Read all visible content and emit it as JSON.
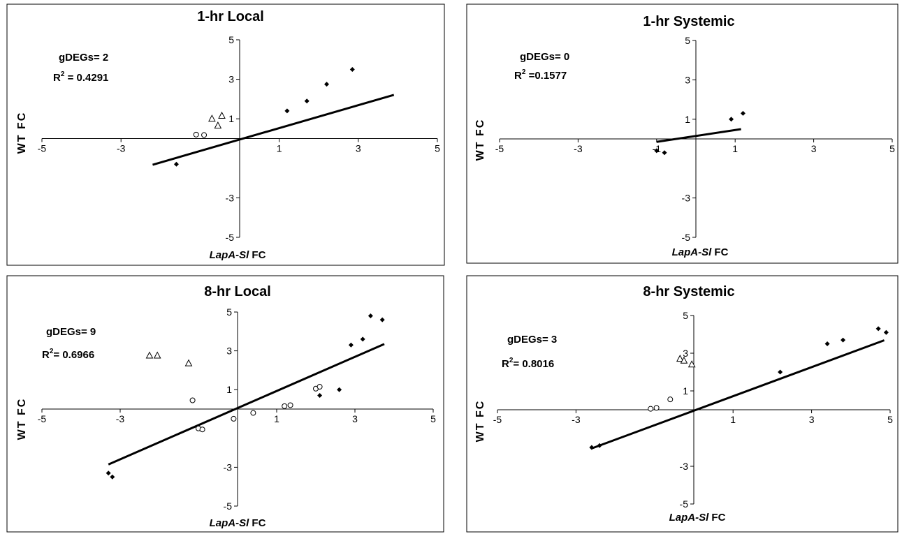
{
  "chart_data": [
    {
      "type": "scatter",
      "title": "1-hr Local",
      "xlabel": {
        "italic": "LapA-Sl",
        "rest": " FC"
      },
      "ylabel": "WT FC",
      "xlim": [
        -5,
        5
      ],
      "ylim": [
        -5,
        5
      ],
      "xticks": [
        -5,
        -3,
        1,
        3,
        5
      ],
      "yticks": [
        5,
        3,
        1,
        -3,
        -5
      ],
      "annotation": {
        "degs": "gDEGs= 2",
        "r2_prefix": "R",
        "r2_value": " = 0.4291"
      },
      "trendline": {
        "x0": -2.2,
        "x1": 3.9,
        "slope": 0.58,
        "intercept": -0.05
      },
      "cloud": {
        "cx": 0.0,
        "cy": -0.1,
        "sx": 0.45,
        "sy": 0.35,
        "corr": 0.65,
        "n": 1100
      },
      "points_filled_extra": [
        [
          2.2,
          2.75
        ],
        [
          2.85,
          3.5
        ],
        [
          1.2,
          1.4
        ],
        [
          1.7,
          1.9
        ],
        [
          -1.6,
          -1.3
        ]
      ],
      "points_open_circle": [
        [
          -1.1,
          0.2
        ],
        [
          -0.9,
          0.18
        ]
      ],
      "points_open_triangle": [
        [
          -0.7,
          1.0
        ],
        [
          -0.45,
          1.15
        ],
        [
          -0.55,
          0.65
        ]
      ]
    },
    {
      "type": "scatter",
      "title": "1-hr Systemic",
      "xlabel": {
        "italic": "LapA-Sl",
        "rest": " FC"
      },
      "ylabel": "WT FC",
      "xlim": [
        -5,
        5
      ],
      "ylim": [
        -5,
        5
      ],
      "xticks": [
        -5,
        -3,
        -1,
        1,
        3,
        5
      ],
      "yticks": [
        5,
        3,
        1,
        -3,
        -5
      ],
      "annotation": {
        "degs": "gDEGs= 0",
        "r2_prefix": "R",
        "r2_value": " =0.1577"
      },
      "trendline": {
        "x0": -1.0,
        "x1": 1.15,
        "slope": 0.3,
        "intercept": 0.15
      },
      "cloud": {
        "cx": 0.0,
        "cy": 0.15,
        "sx": 0.3,
        "sy": 0.2,
        "corr": 0.3,
        "n": 900
      },
      "points_filled_extra": [
        [
          1.2,
          1.3
        ],
        [
          0.9,
          1.0
        ],
        [
          -1.0,
          -0.6
        ],
        [
          -0.8,
          -0.7
        ]
      ],
      "points_open_circle": [],
      "points_open_triangle": []
    },
    {
      "type": "scatter",
      "title": "8-hr Local",
      "xlabel": {
        "italic": "LapA-Sl",
        "rest": " FC"
      },
      "ylabel": "WT FC",
      "xlim": [
        -5,
        5
      ],
      "ylim": [
        -5,
        5
      ],
      "xticks": [
        -5,
        -3,
        1,
        3,
        5
      ],
      "yticks": [
        5,
        3,
        1,
        -3,
        -5
      ],
      "annotation": {
        "degs": "gDEGs= 9",
        "r2_prefix": "R",
        "r2_value": "= 0.6966"
      },
      "trendline": {
        "x0": -3.3,
        "x1": 3.75,
        "slope": 0.88,
        "intercept": 0.05
      },
      "cloud": {
        "cx": -0.1,
        "cy": 0.0,
        "sx": 0.85,
        "sy": 0.75,
        "corr": 0.88,
        "n": 1500
      },
      "points_filled_extra": [
        [
          3.4,
          4.8
        ],
        [
          3.7,
          4.6
        ],
        [
          3.2,
          3.6
        ],
        [
          2.9,
          3.3
        ],
        [
          -3.3,
          -3.3
        ],
        [
          -3.2,
          -3.5
        ],
        [
          2.6,
          1.0
        ],
        [
          2.1,
          0.7
        ]
      ],
      "points_open_circle": [
        [
          -1.0,
          -1.0
        ],
        [
          -0.9,
          -1.05
        ],
        [
          -1.15,
          0.45
        ],
        [
          -0.1,
          -0.5
        ],
        [
          1.2,
          0.15
        ],
        [
          1.35,
          0.2
        ],
        [
          2.0,
          1.05
        ],
        [
          2.1,
          1.15
        ],
        [
          0.4,
          -0.2
        ]
      ],
      "points_open_triangle": [
        [
          -2.25,
          2.75
        ],
        [
          -2.05,
          2.75
        ],
        [
          -1.25,
          2.35
        ]
      ]
    },
    {
      "type": "scatter",
      "title": "8-hr Systemic",
      "xlabel": {
        "italic": "LapA-Sl",
        "rest": " FC"
      },
      "ylabel": "WT FC",
      "xlim": [
        -5,
        5
      ],
      "ylim": [
        -5,
        5
      ],
      "xticks": [
        -5,
        -3,
        1,
        3,
        5
      ],
      "yticks": [
        5,
        3,
        1,
        -3,
        -5
      ],
      "annotation": {
        "degs": "gDEGs= 3",
        "r2_prefix": "R",
        "r2_value": "= 0.8016"
      },
      "trendline": {
        "x0": -2.6,
        "x1": 4.85,
        "slope": 0.77,
        "intercept": -0.05
      },
      "cloud": {
        "cx": 0.0,
        "cy": 0.0,
        "sx": 0.85,
        "sy": 0.68,
        "corr": 0.94,
        "n": 1500
      },
      "points_filled_extra": [
        [
          4.7,
          4.3
        ],
        [
          4.9,
          4.1
        ],
        [
          3.8,
          3.7
        ],
        [
          3.4,
          3.5
        ],
        [
          -2.6,
          -2.0
        ],
        [
          -2.4,
          -1.9
        ],
        [
          2.2,
          2.0
        ]
      ],
      "points_open_circle": [
        [
          -1.1,
          0.05
        ],
        [
          -0.95,
          0.1
        ],
        [
          -0.6,
          0.55
        ]
      ],
      "points_open_triangle": [
        [
          -0.35,
          2.7
        ],
        [
          -0.25,
          2.6
        ],
        [
          -0.05,
          2.4
        ]
      ]
    }
  ]
}
